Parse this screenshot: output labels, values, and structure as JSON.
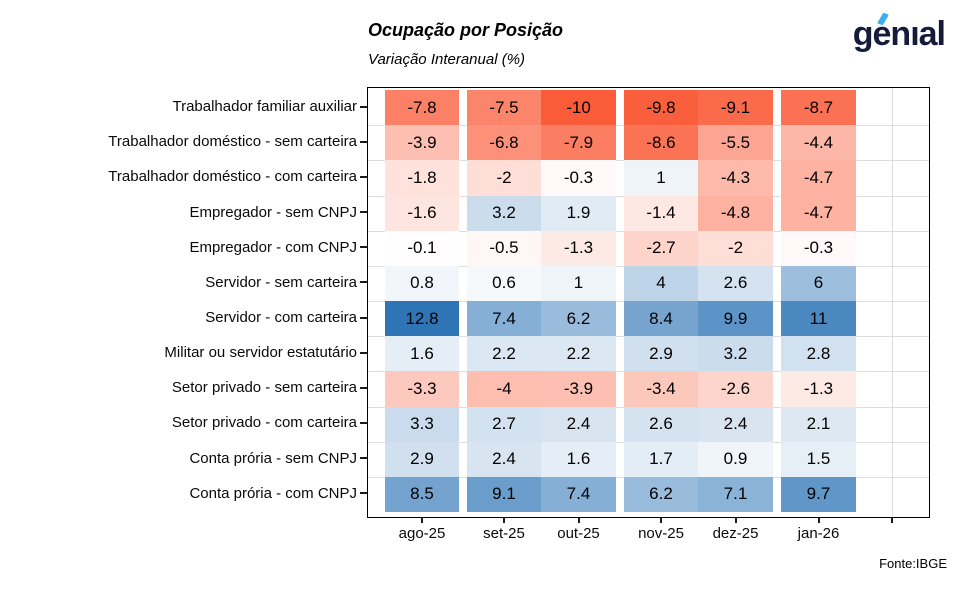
{
  "branding": {
    "logo_text": "genıal",
    "logo_color": "#151B3B",
    "logo_accent": "#3BADF0"
  },
  "chart_data": {
    "type": "heatmap",
    "title": "Ocupação por Posição",
    "subtitle": "Variação Interanual (%)",
    "source": "Fonte:IBGE",
    "columns": [
      "ago-25",
      "set-25",
      "out-25",
      "nov-25",
      "dez-25",
      "jan-26"
    ],
    "rows": [
      "Trabalhador familiar auxiliar",
      "Trabalhador doméstico - sem carteira",
      "Trabalhador doméstico - com carteira",
      "Empregador - sem CNPJ",
      "Empregador - com CNPJ",
      "Servidor - sem carteira",
      "Servidor - com carteira",
      "Militar ou servidor estatutário",
      "Setor privado - sem carteira",
      "Setor privado - com carteira",
      "Conta prória - sem CNPJ",
      "Conta prória - com CNPJ"
    ],
    "values": [
      [
        -7.8,
        -7.5,
        -10,
        -9.8,
        -9.1,
        -8.7
      ],
      [
        -3.9,
        -6.8,
        -7.9,
        -8.6,
        -5.5,
        -4.4
      ],
      [
        -1.8,
        -2,
        -0.3,
        1,
        -4.3,
        -4.7
      ],
      [
        -1.6,
        3.2,
        1.9,
        -1.4,
        -4.8,
        -4.7
      ],
      [
        -0.1,
        -0.5,
        -1.3,
        -2.7,
        -2,
        -0.3
      ],
      [
        0.8,
        0.6,
        1,
        4,
        2.6,
        6
      ],
      [
        12.8,
        7.4,
        6.2,
        8.4,
        9.9,
        11
      ],
      [
        1.6,
        2.2,
        2.2,
        2.9,
        3.2,
        2.8
      ],
      [
        -3.3,
        -4,
        -3.9,
        -3.4,
        -2.6,
        -1.3
      ],
      [
        3.3,
        2.7,
        2.4,
        2.6,
        2.4,
        2.1
      ],
      [
        2.9,
        2.4,
        1.6,
        1.7,
        0.9,
        1.5
      ],
      [
        8.5,
        9.1,
        7.4,
        6.2,
        7.1,
        9.7
      ]
    ],
    "color_scale": {
      "negative_max_color": "#FA5C39",
      "neutral_color": "#FFFFFF",
      "positive_max_color": "#2E75B6",
      "domain_min": -10,
      "domain_mid": 0,
      "domain_max": 12.8
    },
    "grid_color": "#DDDDDD",
    "legend": "none"
  }
}
